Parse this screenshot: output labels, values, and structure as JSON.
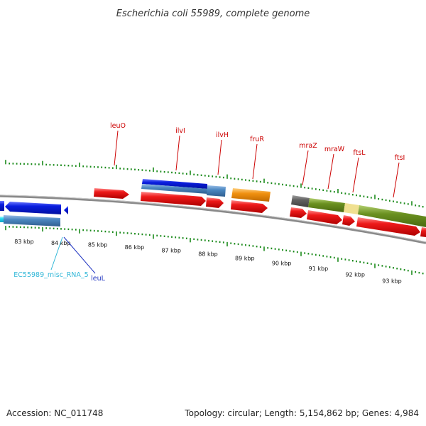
{
  "title": "Escherichia coli 55989, complete genome",
  "footer": {
    "accession": "Accession: NC_011748",
    "summary": "Topology: circular; Length: 5,154,862 bp; Genes: 4,984"
  },
  "gene_labels": {
    "leuO": "leuO",
    "ilvI": "ilvI",
    "ilvH": "ilvH",
    "fruR": "fruR",
    "mraZ": "mraZ",
    "mraW": "mraW",
    "ftsL": "ftsL",
    "ftsI": "ftsI",
    "leuL": "leuL",
    "misc_rna": "EC55989_misc_RNA_5"
  },
  "scale_labels": [
    "83 kbp",
    "84 kbp",
    "85 kbp",
    "86 kbp",
    "87 kbp",
    "88 kbp",
    "89 kbp",
    "90 kbp",
    "91 kbp",
    "92 kbp",
    "93 kbp"
  ],
  "colors": {
    "gene_red": "#e01010",
    "cds_blue": "#0a1ee0",
    "steel_blue": "#4a86c0",
    "orange": "#f09010",
    "olive": "#6a9020",
    "pale_yellow": "#f0e090",
    "dark_gray": "#606060",
    "tick_green": "#1a8a1a",
    "backbone_gray": "#8a8a8a",
    "label_red": "#cc0000",
    "rna_cyan": "#33b8d8"
  }
}
